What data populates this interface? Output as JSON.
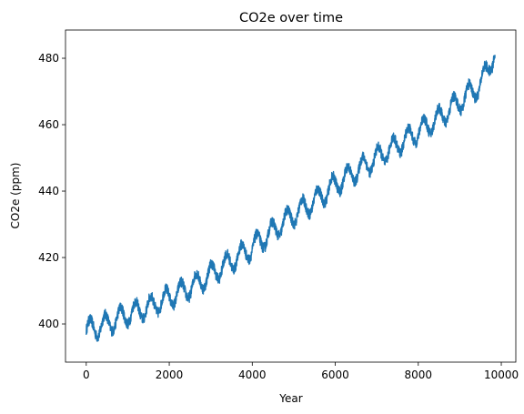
{
  "chart_data": {
    "type": "line",
    "title": "CO2e over time",
    "xlabel": "Year",
    "ylabel": "CO2e (ppm)",
    "xlim": [
      -500,
      10350
    ],
    "ylim": [
      388.5,
      488.5
    ],
    "xticks": [
      0,
      2000,
      4000,
      6000,
      8000,
      10000
    ],
    "yticks": [
      400,
      420,
      440,
      460,
      480
    ],
    "grid": false,
    "legend": "none",
    "series": [
      {
        "color": "#1f77b4",
        "x": [
          0,
          500,
          1000,
          1500,
          2000,
          2500,
          3000,
          3500,
          4000,
          4500,
          5000,
          5500,
          6000,
          6500,
          7000,
          7500,
          8000,
          8500,
          9000,
          9500,
          9850
        ],
        "y": [
          398,
          400,
          403,
          405,
          408,
          411,
          415,
          419,
          423,
          428,
          433,
          437,
          442,
          446,
          450,
          454,
          458,
          462,
          467,
          472,
          482
        ]
      }
    ]
  }
}
